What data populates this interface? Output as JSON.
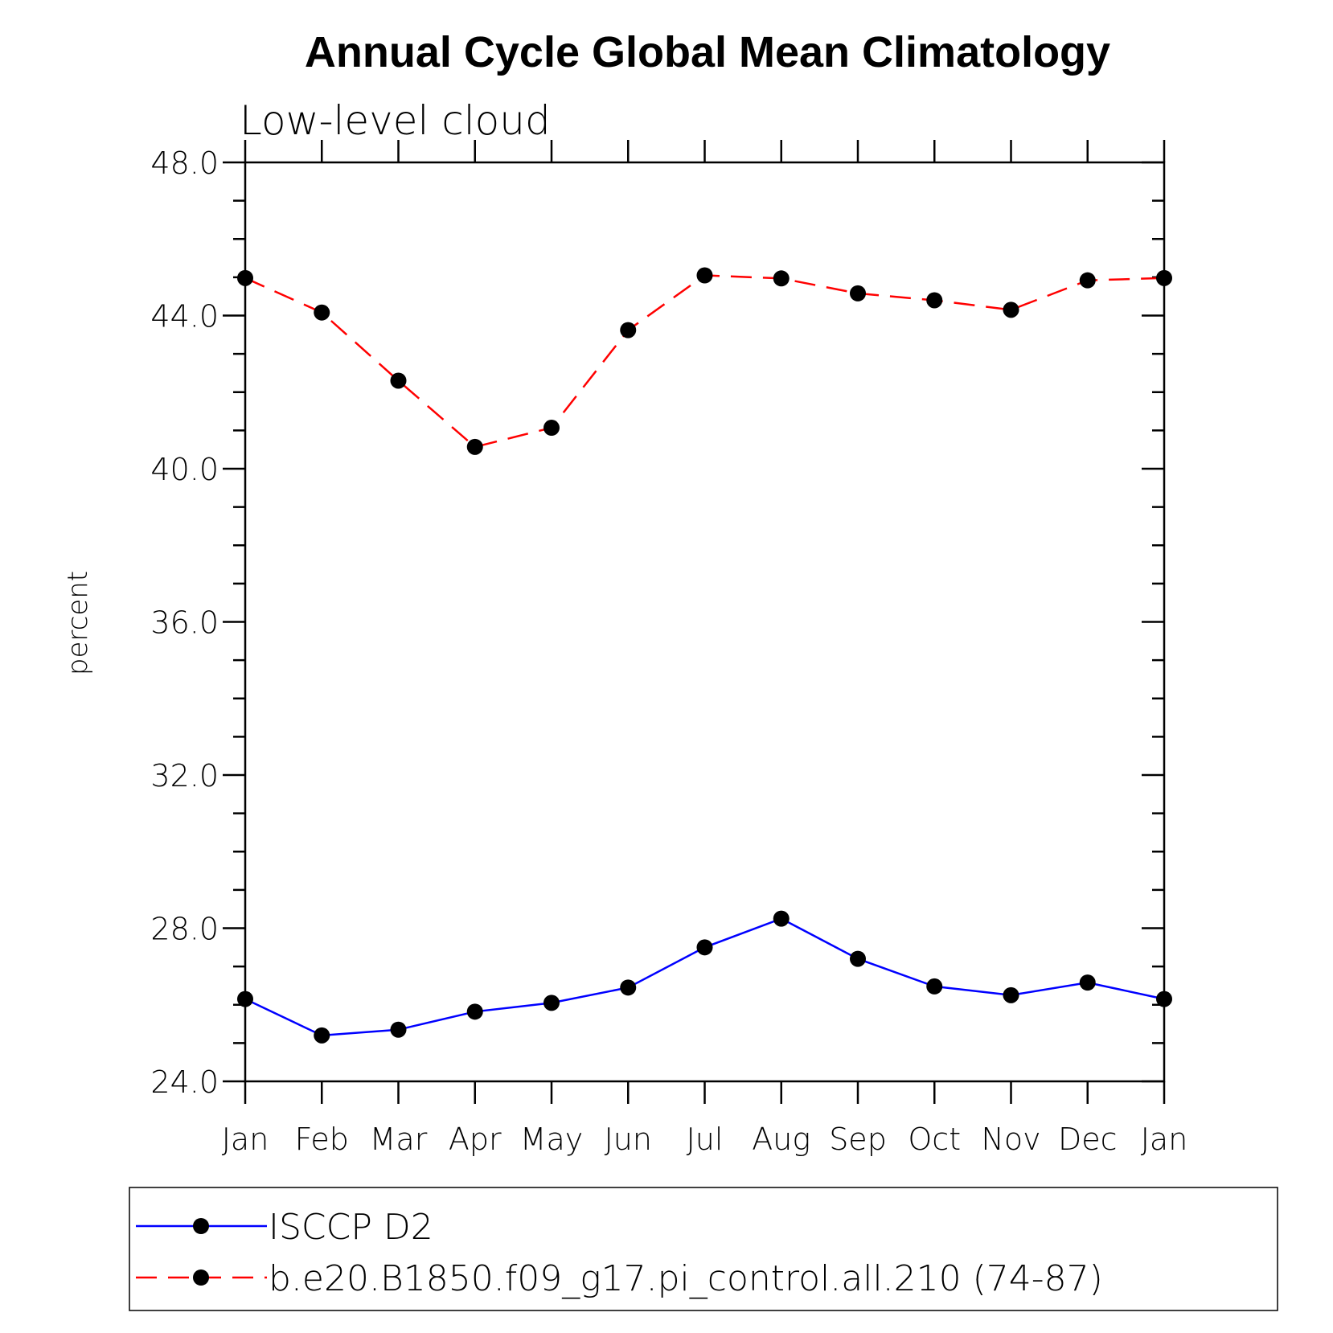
{
  "chart_data": {
    "type": "line",
    "title": "Annual Cycle Global Mean Climatology",
    "subtitle": "Low-level cloud",
    "xlabel": "",
    "ylabel": "percent",
    "categories": [
      "Jan",
      "Feb",
      "Mar",
      "Apr",
      "May",
      "Jun",
      "Jul",
      "Aug",
      "Sep",
      "Oct",
      "Nov",
      "Dec",
      "Jan"
    ],
    "ylim": [
      24.0,
      48.0
    ],
    "yticks": [
      "24.0",
      "28.0",
      "32.0",
      "36.0",
      "40.0",
      "44.0",
      "48.0"
    ],
    "grid": false,
    "legend_position": "bottom",
    "series": [
      {
        "name": "ISCCP D2",
        "color": "#0000ff",
        "dash": "solid",
        "marker": "filled-circle",
        "values": [
          26.15,
          25.2,
          25.35,
          25.82,
          26.05,
          26.45,
          27.5,
          28.25,
          27.2,
          26.48,
          26.25,
          26.58,
          26.15
        ]
      },
      {
        "name": "b.e20.B1850.f09_g17.pi_control.all.210 (74-87)",
        "color": "#ff0000",
        "dash": "dashed",
        "marker": "filled-circle",
        "values": [
          44.98,
          44.08,
          42.3,
          40.57,
          41.07,
          43.62,
          45.05,
          44.97,
          44.58,
          44.4,
          44.15,
          44.92,
          44.98
        ]
      }
    ]
  }
}
